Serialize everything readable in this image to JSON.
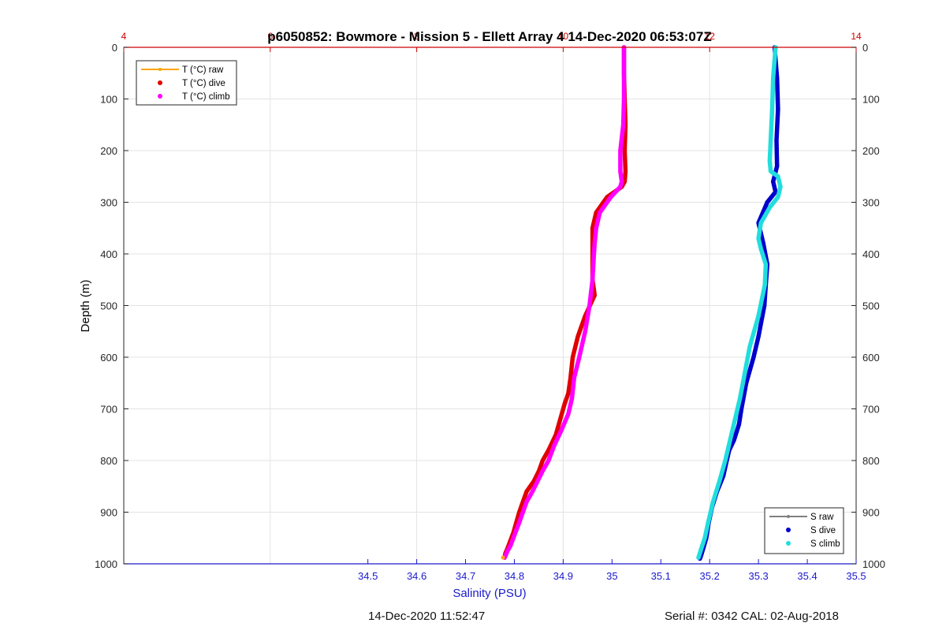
{
  "chart_data": {
    "type": "line",
    "title": "p6050852: Bowmore - Mission 5 - Ellett Array 4 14-Dec-2020 06:53:07Z",
    "xlabel": "Salinity (PSU)",
    "ylabel": "Depth (m)",
    "xlim": [
      34.0,
      35.5
    ],
    "ylim": [
      0,
      1000
    ],
    "y_reversed": true,
    "grid": true,
    "x_ticks": [
      "34.5",
      "34.6",
      "34.7",
      "34.8",
      "34.9",
      "35",
      "35.1",
      "35.2",
      "35.3",
      "35.4",
      "35.5"
    ],
    "y_ticks": [
      "0",
      "100",
      "200",
      "300",
      "400",
      "500",
      "600",
      "700",
      "800",
      "900",
      "1000"
    ],
    "temp_axis": {
      "range": [
        4,
        14
      ],
      "ticks": [
        "4",
        "6",
        "8",
        "10",
        "12",
        "14"
      ],
      "color": "#d00000"
    },
    "legend_temperature": {
      "placement": "top-left",
      "entries": [
        {
          "label": "T (°C) raw",
          "color": "#ffa500",
          "style": "line-marker"
        },
        {
          "label": "T (°C) dive",
          "color": "#e00000",
          "style": "dot"
        },
        {
          "label": "T (°C) climb",
          "color": "#ff00ff",
          "style": "dot"
        }
      ]
    },
    "legend_salinity": {
      "placement": "bottom-right",
      "entries": [
        {
          "label": "S raw",
          "color": "#808080",
          "style": "line-marker"
        },
        {
          "label": "S dive",
          "color": "#0000cc",
          "style": "dot"
        },
        {
          "label": "S climb",
          "color": "#22dddd",
          "style": "dot"
        }
      ]
    },
    "series": [
      {
        "name": "T (°C) dive",
        "color": "#e00000",
        "axis": "temperature",
        "x": [
          10.83,
          10.83,
          10.84,
          10.85,
          10.84,
          10.85,
          10.84,
          10.8,
          10.6,
          10.45,
          10.4,
          10.4,
          10.4,
          10.4,
          10.43,
          10.3,
          10.2,
          10.13,
          10.1,
          10.07,
          10.02,
          9.96,
          9.9,
          9.8,
          9.72,
          9.67,
          9.6,
          9.5,
          9.45,
          9.4,
          9.36,
          9.32,
          9.28,
          9.24,
          9.21,
          9.2
        ],
        "y": [
          0,
          50,
          100,
          150,
          200,
          240,
          260,
          270,
          290,
          320,
          350,
          380,
          400,
          450,
          480,
          520,
          560,
          600,
          640,
          670,
          690,
          720,
          750,
          780,
          800,
          820,
          840,
          860,
          880,
          900,
          920,
          940,
          955,
          970,
          980,
          988
        ]
      },
      {
        "name": "T (°C) climb",
        "color": "#ff00ff",
        "axis": "temperature",
        "x": [
          10.83,
          10.83,
          10.83,
          10.82,
          10.78,
          10.78,
          10.8,
          10.78,
          10.65,
          10.5,
          10.45,
          10.43,
          10.42,
          10.4,
          10.36,
          10.3,
          10.22,
          10.15,
          10.12,
          10.07,
          9.98,
          9.88,
          9.8,
          9.72,
          9.65,
          9.58,
          9.5,
          9.45,
          9.4,
          9.36,
          9.32,
          9.28,
          9.24,
          9.21,
          9.2
        ],
        "y": [
          0,
          50,
          100,
          150,
          200,
          240,
          260,
          270,
          290,
          320,
          350,
          380,
          400,
          450,
          500,
          550,
          600,
          640,
          680,
          710,
          740,
          770,
          800,
          820,
          840,
          860,
          880,
          900,
          920,
          935,
          950,
          965,
          975,
          985,
          988
        ]
      },
      {
        "name": "S dive",
        "color": "#0000cc",
        "axis": "salinity",
        "x": [
          35.333,
          35.338,
          35.34,
          35.337,
          35.338,
          35.33,
          35.335,
          35.318,
          35.3,
          35.31,
          35.318,
          35.315,
          35.312,
          35.3,
          35.29,
          35.275,
          35.265,
          35.26,
          35.25,
          35.24,
          35.235,
          35.228,
          35.215,
          35.205,
          35.198,
          35.193,
          35.187,
          35.182,
          35.18
        ],
        "y": [
          0,
          60,
          120,
          180,
          230,
          260,
          280,
          300,
          340,
          380,
          420,
          460,
          500,
          560,
          600,
          650,
          700,
          730,
          760,
          780,
          800,
          830,
          860,
          890,
          920,
          950,
          970,
          985,
          990
        ]
      },
      {
        "name": "S climb",
        "color": "#22dddd",
        "axis": "salinity",
        "x": [
          35.335,
          35.33,
          35.328,
          35.325,
          35.323,
          35.325,
          35.34,
          35.345,
          35.34,
          35.323,
          35.305,
          35.3,
          35.305,
          35.315,
          35.313,
          35.3,
          35.282,
          35.27,
          35.262,
          35.252,
          35.242,
          35.232,
          35.22,
          35.207,
          35.197,
          35.19,
          35.183,
          35.178,
          35.177
        ],
        "y": [
          0,
          60,
          120,
          180,
          220,
          240,
          250,
          270,
          290,
          310,
          340,
          370,
          390,
          420,
          460,
          520,
          580,
          640,
          680,
          720,
          760,
          800,
          840,
          880,
          920,
          950,
          970,
          985,
          988
        ]
      }
    ]
  },
  "footer": {
    "timestamp": "14-Dec-2020 11:52:47",
    "serial": "Serial #: 0342  CAL: 02-Aug-2018"
  }
}
